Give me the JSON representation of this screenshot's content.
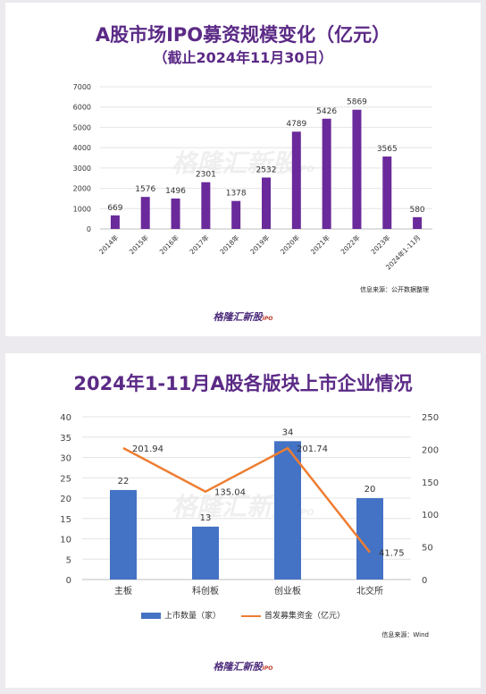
{
  "chart_data": [
    {
      "type": "bar",
      "title": "A股市场IPO募资规模变化（亿元）",
      "subtitle": "（截止2024年11月30日）",
      "categories": [
        "2014年",
        "2015年",
        "2016年",
        "2017年",
        "2018年",
        "2019年",
        "2020年",
        "2021年",
        "2022年",
        "2023年",
        "2024年1-11月"
      ],
      "values": [
        669,
        1576,
        1496,
        2301,
        1378,
        2532,
        4789,
        5426,
        5869,
        3565,
        580
      ],
      "ylim": [
        0,
        7000
      ],
      "yticks": [
        0,
        1000,
        2000,
        3000,
        4000,
        5000,
        6000,
        7000
      ],
      "color": "#6a2a9b",
      "grid": true,
      "source": "信息来源：公开数据整理",
      "logo": "格隆汇新股",
      "logo_sup": "IPO",
      "watermark": "格隆汇新股",
      "watermark_sup": "IPO"
    },
    {
      "type": "bar",
      "title": "2024年1-11月A股各版块上市企业情况",
      "categories": [
        "主板",
        "科创板",
        "创业板",
        "北交所"
      ],
      "series": [
        {
          "name": "上市数量（家）",
          "type": "bar",
          "axis": "left",
          "values": [
            22,
            13,
            34,
            20
          ],
          "color": "#4472c4"
        },
        {
          "name": "首发募集资金（亿元）",
          "type": "line",
          "axis": "right",
          "values": [
            201.94,
            135.04,
            201.74,
            41.75
          ],
          "color": "#ed7d31"
        }
      ],
      "ylim_left": [
        0,
        40
      ],
      "yticks_left": [
        0,
        5,
        10,
        15,
        20,
        25,
        30,
        35,
        40
      ],
      "ylim_right": [
        0,
        250
      ],
      "yticks_right": [
        0,
        50,
        100,
        150,
        200,
        250
      ],
      "legend": "bottom",
      "grid": true,
      "source": "信息来源：Wind",
      "logo": "格隆汇新股",
      "logo_sup": "IPO",
      "watermark": "格隆汇新股",
      "watermark_sup": "IPO"
    }
  ]
}
